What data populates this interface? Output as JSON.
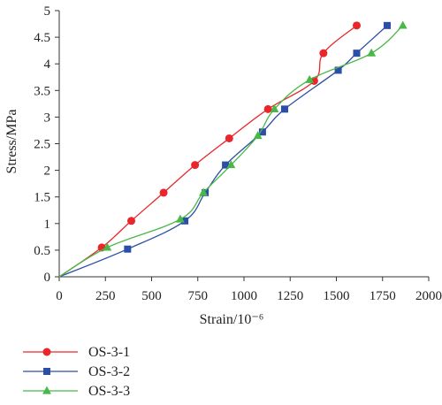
{
  "chart_data": {
    "type": "line",
    "xlabel": "Strain/10⁻⁶",
    "ylabel": "Stress/MPa",
    "xlim": [
      0,
      2000
    ],
    "ylim": [
      0,
      5
    ],
    "xticks": [
      "0",
      "250",
      "500",
      "750",
      "1000",
      "1250",
      "1500",
      "1750",
      "2000"
    ],
    "yticks": [
      "0",
      "0.5",
      "1",
      "1.5",
      "2",
      "2.5",
      "3",
      "3.5",
      "4",
      "4.5",
      "5"
    ],
    "grid": false,
    "legend_position": "bottom-left",
    "series": [
      {
        "name": "OS-3-1",
        "color": "#e8262b",
        "marker": "circle",
        "x": [
          0,
          230,
          390,
          565,
          735,
          920,
          1130,
          1380,
          1430,
          1610
        ],
        "y": [
          0,
          0.55,
          1.05,
          1.58,
          2.1,
          2.6,
          3.15,
          3.68,
          4.2,
          4.72
        ]
      },
      {
        "name": "OS-3-2",
        "color": "#2b4ea6",
        "marker": "square",
        "x": [
          0,
          370,
          680,
          790,
          900,
          1100,
          1220,
          1510,
          1610,
          1775
        ],
        "y": [
          0,
          0.52,
          1.05,
          1.58,
          2.1,
          2.72,
          3.15,
          3.88,
          4.2,
          4.72
        ]
      },
      {
        "name": "OS-3-3",
        "color": "#49b848",
        "marker": "triangle",
        "x": [
          0,
          260,
          655,
          780,
          930,
          1075,
          1165,
          1355,
          1690,
          1860
        ],
        "y": [
          0,
          0.55,
          1.08,
          1.58,
          2.1,
          2.65,
          3.15,
          3.7,
          4.2,
          4.72
        ]
      }
    ]
  }
}
